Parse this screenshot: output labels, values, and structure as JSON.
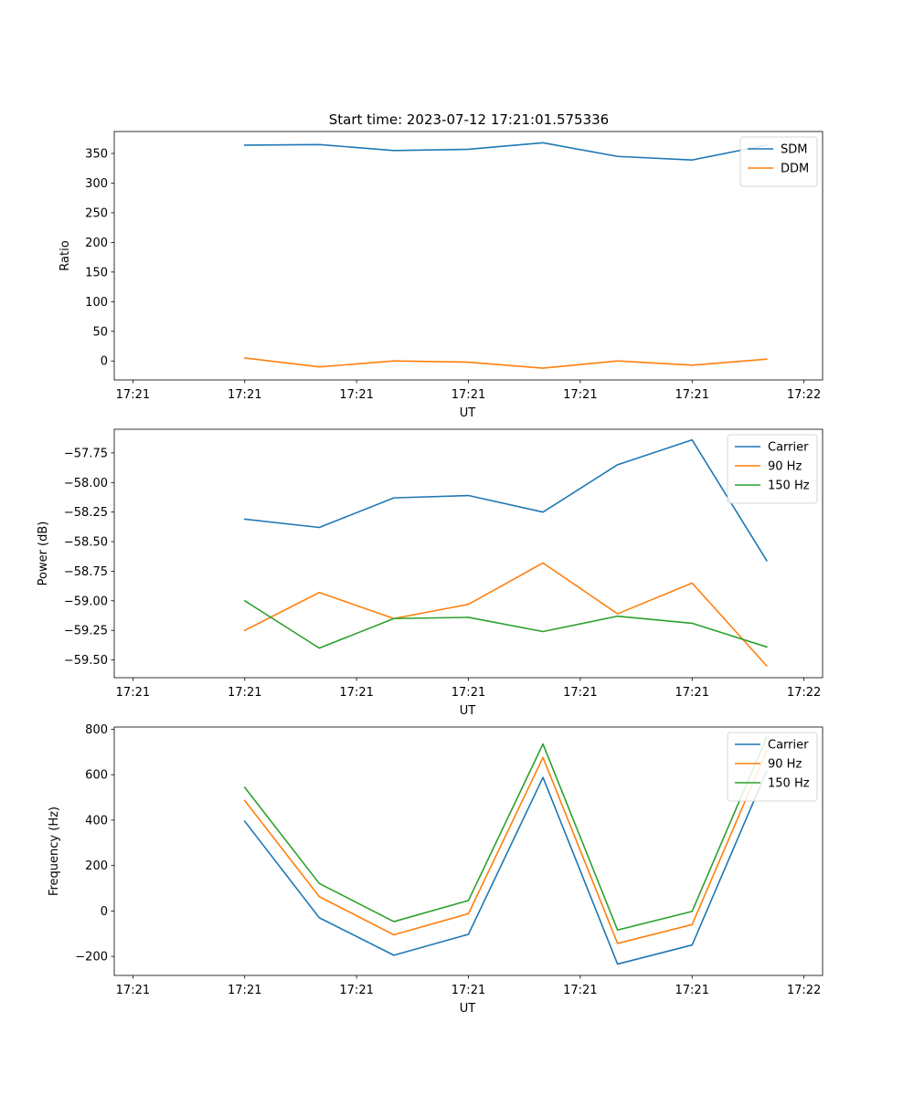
{
  "title": "Start time: 2023-07-12 17:21:01.575336",
  "colors": {
    "blue": "#1f77b4",
    "orange": "#ff7f0e",
    "green": "#2ca02c"
  },
  "chart_data": [
    {
      "type": "line",
      "title": "Start time: 2023-07-12 17:21:01.575336",
      "xlabel": "UT",
      "ylabel": "Ratio",
      "x": [
        1.75,
        2.75,
        3.75,
        4.75,
        5.75,
        6.75,
        7.75,
        8.75
      ],
      "xlim": [
        0,
        9.5
      ],
      "xticks": [
        0.25,
        1.75,
        3.25,
        4.75,
        6.25,
        7.75,
        9.25
      ],
      "xtick_labels": [
        "17:21",
        "17:21",
        "17:21",
        "17:21",
        "17:21",
        "17:21",
        "17:22"
      ],
      "ylim": [
        -32,
        387
      ],
      "yticks": [
        0,
        50,
        100,
        150,
        200,
        250,
        300,
        350
      ],
      "ytick_labels": [
        "0",
        "50",
        "100",
        "150",
        "200",
        "250",
        "300",
        "350"
      ],
      "legend_position": "top-right",
      "series": [
        {
          "name": "SDM",
          "color": "#1f77b4",
          "values": [
            364,
            365,
            355,
            357,
            368,
            345,
            339,
            364
          ]
        },
        {
          "name": "DDM",
          "color": "#ff7f0e",
          "values": [
            5,
            -10,
            0,
            -2,
            -12,
            0,
            -7,
            3
          ]
        }
      ]
    },
    {
      "type": "line",
      "title": "",
      "xlabel": "UT",
      "ylabel": "Power (dB)",
      "x": [
        1.75,
        2.75,
        3.75,
        4.75,
        5.75,
        6.75,
        7.75,
        8.75
      ],
      "xlim": [
        0,
        9.5
      ],
      "xticks": [
        0.25,
        1.75,
        3.25,
        4.75,
        6.25,
        7.75,
        9.25
      ],
      "xtick_labels": [
        "17:21",
        "17:21",
        "17:21",
        "17:21",
        "17:21",
        "17:21",
        "17:22"
      ],
      "ylim": [
        -59.65,
        -57.55
      ],
      "yticks": [
        -59.5,
        -59.25,
        -59.0,
        -58.75,
        -58.5,
        -58.25,
        -58.0,
        -57.75
      ],
      "ytick_labels": [
        "−59.50",
        "−59.25",
        "−59.00",
        "−58.75",
        "−58.50",
        "−58.25",
        "−58.00",
        "−57.75"
      ],
      "legend_position": "top-right",
      "series": [
        {
          "name": "Carrier",
          "color": "#1f77b4",
          "values": [
            -58.31,
            -58.38,
            -58.13,
            -58.11,
            -58.25,
            -57.85,
            -57.64,
            -58.66
          ]
        },
        {
          "name": "90 Hz",
          "color": "#ff7f0e",
          "values": [
            -59.25,
            -58.93,
            -59.15,
            -59.03,
            -58.68,
            -59.11,
            -58.85,
            -59.55
          ]
        },
        {
          "name": "150 Hz",
          "color": "#2ca02c",
          "values": [
            -59.0,
            -59.4,
            -59.15,
            -59.14,
            -59.26,
            -59.13,
            -59.19,
            -59.39
          ]
        }
      ]
    },
    {
      "type": "line",
      "title": "",
      "xlabel": "UT",
      "ylabel": "Frequency (Hz)",
      "x": [
        1.75,
        2.75,
        3.75,
        4.75,
        5.75,
        6.75,
        7.75,
        8.75
      ],
      "xlim": [
        0,
        9.5
      ],
      "xticks": [
        0.25,
        1.75,
        3.25,
        4.75,
        6.25,
        7.75,
        9.25
      ],
      "xtick_labels": [
        "17:21",
        "17:21",
        "17:21",
        "17:21",
        "17:21",
        "17:21",
        "17:22"
      ],
      "ylim": [
        -284,
        810
      ],
      "yticks": [
        -200,
        0,
        200,
        400,
        600,
        800
      ],
      "ytick_labels": [
        "−200",
        "0",
        "200",
        "400",
        "600",
        "800"
      ],
      "legend_position": "top-right",
      "series": [
        {
          "name": "Carrier",
          "color": "#1f77b4",
          "values": [
            395,
            -30,
            -195,
            -103,
            588,
            -234,
            -150,
            616
          ]
        },
        {
          "name": "90 Hz",
          "color": "#ff7f0e",
          "values": [
            486,
            63,
            -105,
            -12,
            676,
            -143,
            -60,
            705
          ]
        },
        {
          "name": "150 Hz",
          "color": "#2ca02c",
          "values": [
            544,
            121,
            -47,
            46,
            735,
            -84,
            -2,
            765
          ]
        }
      ]
    }
  ]
}
